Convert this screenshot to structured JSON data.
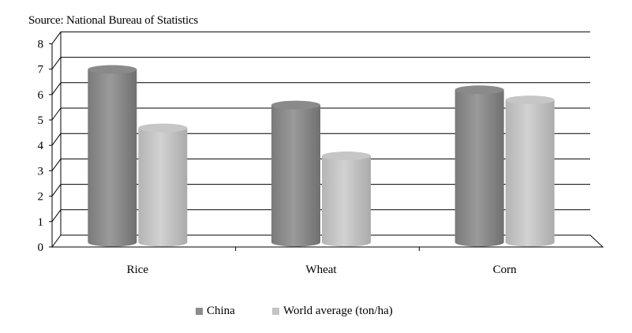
{
  "source_note": "Source: National Bureau of Statistics",
  "chart_data": {
    "type": "bar",
    "categories": [
      "Rice",
      "Wheat",
      "Corn"
    ],
    "series": [
      {
        "name": "China",
        "values": [
          6.8,
          5.4,
          6.0
        ],
        "color": "#8c8c8c"
      },
      {
        "name": "World average (ton/ha)",
        "values": [
          4.5,
          3.4,
          5.6
        ],
        "color": "#c4c4c4"
      }
    ],
    "yticks": [
      "0",
      "1",
      "2",
      "3",
      "4",
      "5",
      "6",
      "7",
      "8"
    ],
    "ylim": [
      0,
      8
    ],
    "grid": true,
    "legend_position": "bottom",
    "style": "3d-cylinder"
  }
}
